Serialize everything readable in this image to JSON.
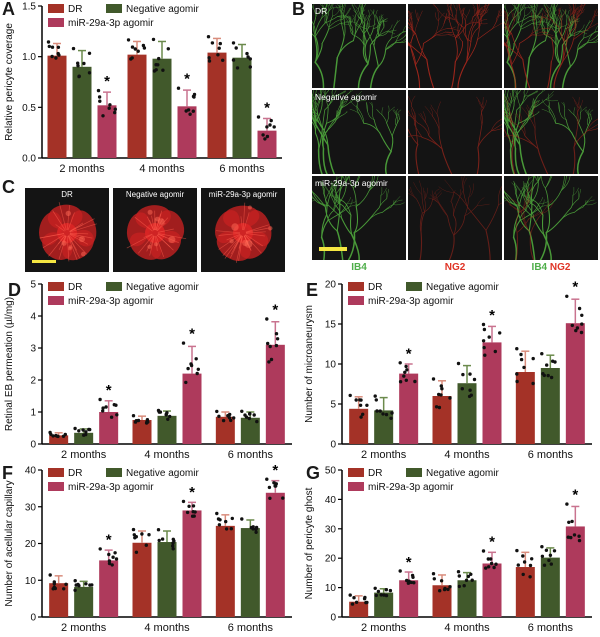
{
  "figure_labels": {
    "a": "A",
    "b": "B",
    "c": "C",
    "d": "D",
    "e": "E",
    "f": "F",
    "g": "G"
  },
  "legend": {
    "items": [
      "DR",
      "Negative agomir",
      "miR-29a-3p agomir"
    ]
  },
  "colors": {
    "dr_fill": "#A43227",
    "negative_fill": "#41592B",
    "mir_fill": "#AE3A5C",
    "dr_error": "#D98C7C",
    "negative_error": "#6B8A4C",
    "mir_error": "#C9738F",
    "dot_black": "#111111",
    "axis_black": "#000000",
    "ib4_label_green": "#4FAE4A",
    "ng2_label_red": "#E03426",
    "vessel_green": "#4FA83D",
    "vessel_red": "#B3291D",
    "retina_red": "#C42020",
    "scale_bar_yellow": "#F5E642",
    "image_background": "#141414",
    "image_label_white": "#FFFFFF"
  },
  "panel_b": {
    "label": "B",
    "row_labels": [
      "DR",
      "Negative agomir",
      "miR-29a-3p agomir"
    ],
    "ib4_label": "IB4",
    "ng2_label": "NG2"
  },
  "panel_c": {
    "label": "C",
    "image_labels": [
      "DR",
      "Negative agomir",
      "miR-29a-3p agomir"
    ]
  },
  "chart_data": [
    {
      "panel": "A",
      "type": "bar",
      "ylabel": "Relative pericyte coverage",
      "categories": [
        "2 months",
        "4 months",
        "6 months"
      ],
      "ylim": [
        0,
        1.5
      ],
      "yticks": [
        0,
        0.5,
        1.0,
        1.5
      ],
      "ytick_labels": [
        "0.0",
        "0.5",
        "1.0",
        "1.5"
      ],
      "grid": false,
      "legend_position": "top-left",
      "series": [
        {
          "name": "DR",
          "values": [
            1.01,
            1.02,
            1.04
          ],
          "errors": [
            0.12,
            0.13,
            0.14
          ]
        },
        {
          "name": "Negative agomir",
          "values": [
            0.9,
            0.98,
            0.99
          ],
          "errors": [
            0.16,
            0.17,
            0.13
          ]
        },
        {
          "name": "miR-29a-3p agomir",
          "values": [
            0.52,
            0.51,
            0.27
          ],
          "errors": [
            0.13,
            0.16,
            0.12
          ]
        }
      ],
      "significance": {
        "series": "miR-29a-3p agomir",
        "marker": "*",
        "groups": [
          "2 months",
          "4 months",
          "6 months"
        ]
      }
    },
    {
      "panel": "D",
      "type": "bar",
      "ylabel": "Retinal EB permeation (µl/mg)",
      "categories": [
        "2 months",
        "4 months",
        "6 months"
      ],
      "ylim": [
        0,
        5
      ],
      "yticks": [
        0,
        1,
        2,
        3,
        4,
        5
      ],
      "ytick_labels": [
        "0",
        "1",
        "2",
        "3",
        "4",
        "5"
      ],
      "grid": false,
      "legend_position": "top-left",
      "series": [
        {
          "name": "DR",
          "values": [
            0.27,
            0.75,
            0.85
          ],
          "errors": [
            0.08,
            0.12,
            0.15
          ]
        },
        {
          "name": "Negative agomir",
          "values": [
            0.35,
            0.88,
            0.82
          ],
          "errors": [
            0.12,
            0.15,
            0.18
          ]
        },
        {
          "name": "miR-29a-3p agomir",
          "values": [
            1.0,
            2.2,
            3.1
          ],
          "errors": [
            0.35,
            0.85,
            0.72
          ]
        }
      ],
      "significance": {
        "series": "miR-29a-3p agomir",
        "marker": "*",
        "groups": [
          "2 months",
          "4 months",
          "6 months"
        ]
      }
    },
    {
      "panel": "E",
      "type": "bar",
      "ylabel": "Number of microaneurysm",
      "categories": [
        "2 months",
        "4 months",
        "6 months"
      ],
      "ylim": [
        0,
        20
      ],
      "yticks": [
        0,
        5,
        10,
        15,
        20
      ],
      "ytick_labels": [
        "0",
        "5",
        "10",
        "15",
        "20"
      ],
      "grid": false,
      "legend_position": "top-left",
      "series": [
        {
          "name": "DR",
          "values": [
            4.4,
            6.0,
            9.0
          ],
          "errors": [
            1.5,
            1.9,
            2.6
          ]
        },
        {
          "name": "Negative agomir",
          "values": [
            4.2,
            7.6,
            9.5
          ],
          "errors": [
            1.6,
            2.2,
            1.6
          ]
        },
        {
          "name": "miR-29a-3p agomir",
          "values": [
            8.8,
            12.7,
            15.1
          ],
          "errors": [
            1.2,
            2.0,
            3.0
          ]
        }
      ],
      "significance": {
        "series": "miR-29a-3p agomir",
        "marker": "*",
        "groups": [
          "2 months",
          "4 months",
          "6 months"
        ]
      }
    },
    {
      "panel": "F",
      "type": "bar",
      "ylabel": "Number of acellular capillary",
      "categories": [
        "2 months",
        "4 months",
        "6 months"
      ],
      "ylim": [
        0,
        40
      ],
      "yticks": [
        0,
        10,
        20,
        30,
        40
      ],
      "ytick_labels": [
        "0",
        "10",
        "20",
        "30",
        "40"
      ],
      "grid": false,
      "legend_position": "top-left",
      "series": [
        {
          "name": "DR",
          "values": [
            9.2,
            20.2,
            24.8
          ],
          "errors": [
            2.0,
            3.2,
            3.0
          ]
        },
        {
          "name": "Negative agomir",
          "values": [
            8.2,
            20.4,
            24.2
          ],
          "errors": [
            1.5,
            3.0,
            2.2
          ]
        },
        {
          "name": "miR-29a-3p agomir",
          "values": [
            15.4,
            29.0,
            33.8
          ],
          "errors": [
            2.8,
            2.2,
            3.3
          ]
        }
      ],
      "significance": {
        "series": "miR-29a-3p agomir",
        "marker": "*",
        "groups": [
          "2 months",
          "4 months",
          "6 months"
        ]
      }
    },
    {
      "panel": "G",
      "type": "bar",
      "ylabel": "Number of pericyte ghost",
      "categories": [
        "2 months",
        "4 months",
        "6 months"
      ],
      "ylim": [
        0,
        50
      ],
      "yticks": [
        0,
        10,
        20,
        30,
        40,
        50
      ],
      "ytick_labels": [
        "0",
        "10",
        "20",
        "30",
        "40",
        "50"
      ],
      "grid": false,
      "legend_position": "top-left",
      "series": [
        {
          "name": "DR",
          "values": [
            5.2,
            10.8,
            17.0
          ],
          "errors": [
            2.0,
            3.5,
            5.0
          ]
        },
        {
          "name": "Negative agomir",
          "values": [
            8.3,
            12.5,
            20.2
          ],
          "errors": [
            1.3,
            2.6,
            3.3
          ]
        },
        {
          "name": "miR-29a-3p agomir",
          "values": [
            12.5,
            18.2,
            30.8
          ],
          "errors": [
            2.8,
            3.8,
            6.8
          ]
        }
      ],
      "significance": {
        "series": "miR-29a-3p agomir",
        "marker": "*",
        "groups": [
          "2 months",
          "4 months",
          "6 months"
        ]
      }
    }
  ]
}
